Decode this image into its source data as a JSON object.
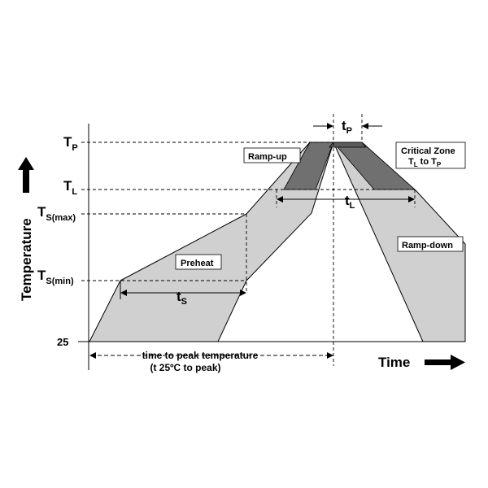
{
  "diagram": {
    "y_axis": {
      "title": "Temperature",
      "levels": [
        {
          "key": "tp",
          "main": "T",
          "sub": "P"
        },
        {
          "key": "tl",
          "main": "T",
          "sub": "L"
        },
        {
          "key": "tsmax",
          "main": "T",
          "sub": "S(max)"
        },
        {
          "key": "tsmin",
          "main": "T",
          "sub": "S(min)"
        },
        {
          "key": "ambient",
          "main": "25",
          "sub": ""
        }
      ]
    },
    "x_axis": {
      "title": "Time"
    },
    "regions": {
      "ramp_up": "Ramp-up",
      "preheat": "Preheat",
      "ramp_down": "Ramp-down",
      "critical_zone": {
        "line1": "Critical Zone",
        "line2_main_1": "T",
        "line2_sub_1": "L",
        "line2_mid": " to T",
        "line2_sub_2": "P"
      }
    },
    "durations": {
      "tp": {
        "main": "t",
        "sub": "P"
      },
      "tl": {
        "main": "t",
        "sub": "L"
      },
      "ts": {
        "main": "t",
        "sub": "S"
      }
    },
    "time_to_peak": {
      "line1": "time to peak temperature",
      "line2": "(t 25ºC to peak)"
    },
    "colors": {
      "light_fill": "#d0d0d0",
      "dark_fill": "#707070",
      "peak_fill": "#5a5a5a",
      "line": "#000000"
    }
  }
}
